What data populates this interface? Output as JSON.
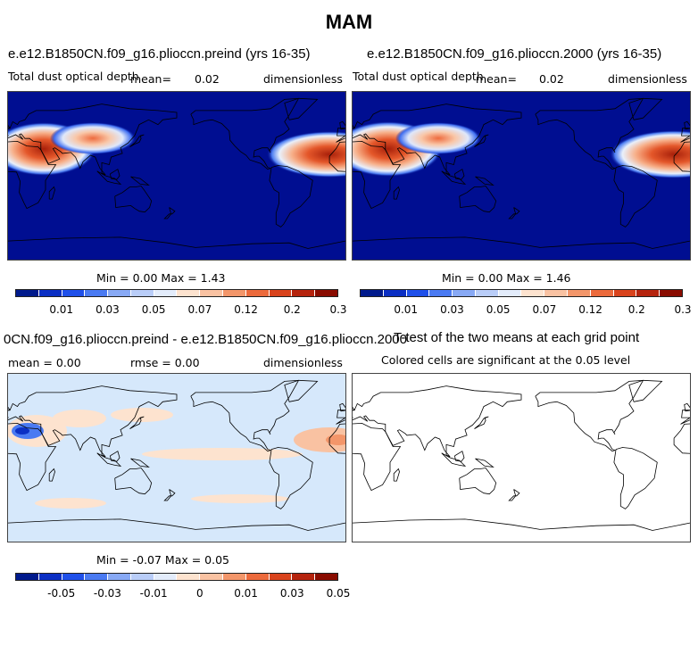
{
  "title": "MAM",
  "panels": [
    {
      "title": "e.e12.B1850CN.f09_g16.plioccn.preind (yrs 16-35)",
      "variable": "Total dust optical depth",
      "mean_label": "mean=",
      "mean_value": "0.02",
      "units": "dimensionless",
      "min_max": "Min =    0.00 Max =    1.43",
      "colorbar_ticks": [
        "0.01",
        "0.03",
        "0.05",
        "0.07",
        "0.12",
        "0.2",
        "0.3"
      ]
    },
    {
      "title": "e.e12.B1850CN.f09_g16.plioccn.2000 (yrs 16-35)",
      "variable": "Total dust optical depth",
      "mean_label": "mean=",
      "mean_value": "0.02",
      "units": "dimensionless",
      "min_max": "Min =    0.00 Max =    1.46",
      "colorbar_ticks": [
        "0.01",
        "0.03",
        "0.05",
        "0.07",
        "0.12",
        "0.2",
        "0.3"
      ]
    },
    {
      "title": "0CN.f09_g16.plioccn.preind - e.e12.B1850CN.f09_g16.plioccn.2000",
      "mean_text": "mean =    0.00",
      "rmse_text": "rmse =    0.00",
      "units": "dimensionless",
      "min_max": "Min =   -0.07 Max =    0.05",
      "colorbar_ticks": [
        "-0.05",
        "-0.03",
        "-0.01",
        "0",
        "0.01",
        "0.03",
        "0.05"
      ]
    },
    {
      "title": "T-test of the two means at each grid point",
      "subtitle": "Colored cells are significant at the 0.05 level"
    }
  ],
  "colorbar_colors": [
    "#001a8c",
    "#0b2fc4",
    "#1f50ea",
    "#4a7af2",
    "#88a9f5",
    "#b9cdf8",
    "#e3ecfb",
    "#fde3cf",
    "#f9c2a2",
    "#f3966a",
    "#ec6a3c",
    "#d9431c",
    "#b5230d",
    "#8a0c00"
  ],
  "map_colors": {
    "ocean_low": "#000e91",
    "diff_bg": "#d6e8fb",
    "land_line": "#000000"
  }
}
